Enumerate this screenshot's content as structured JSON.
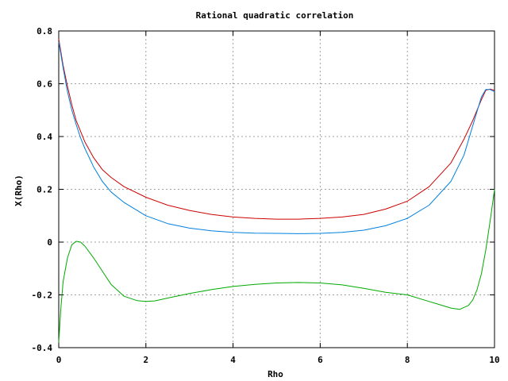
{
  "chart_data": {
    "type": "line",
    "title": "Rational quadratic correlation",
    "xlabel": "Rho",
    "ylabel": "X(Rho)",
    "xlim": [
      0,
      10
    ],
    "ylim": [
      -0.4,
      0.8
    ],
    "xticks": [
      0,
      2,
      4,
      6,
      8,
      10
    ],
    "yticks": [
      -0.4,
      -0.2,
      0,
      0.2,
      0.4,
      0.6,
      0.8
    ],
    "xtick_labels": [
      "0",
      "2",
      "4",
      "6",
      "8",
      "10"
    ],
    "ytick_labels": [
      "-0.4",
      "-0.2",
      "0",
      "0.2",
      "0.4",
      "0.6",
      "0.8"
    ],
    "grid": true,
    "series": [
      {
        "color": "#cc0000",
        "x": [
          0,
          0.1,
          0.2,
          0.3,
          0.4,
          0.5,
          0.6,
          0.8,
          1.0,
          1.2,
          1.5,
          2.0,
          2.5,
          3.0,
          3.5,
          4.0,
          4.5,
          5.0,
          5.5,
          6.0,
          6.5,
          7.0,
          7.5,
          8.0,
          8.5,
          9.0,
          9.3,
          9.5,
          9.7,
          9.8,
          9.9,
          10.0
        ],
        "y": [
          0.77,
          0.67,
          0.59,
          0.52,
          0.46,
          0.42,
          0.38,
          0.32,
          0.275,
          0.245,
          0.21,
          0.17,
          0.14,
          0.12,
          0.105,
          0.095,
          0.09,
          0.087,
          0.087,
          0.09,
          0.095,
          0.105,
          0.125,
          0.155,
          0.21,
          0.3,
          0.39,
          0.46,
          0.54,
          0.575,
          0.58,
          0.575
        ]
      },
      {
        "color": "#0080dd",
        "x": [
          0,
          0.1,
          0.2,
          0.3,
          0.4,
          0.5,
          0.6,
          0.8,
          1.0,
          1.2,
          1.5,
          2.0,
          2.5,
          3.0,
          3.5,
          4.0,
          4.5,
          5.0,
          5.5,
          6.0,
          6.5,
          7.0,
          7.5,
          8.0,
          8.5,
          9.0,
          9.3,
          9.5,
          9.7,
          9.8,
          9.9,
          10.0
        ],
        "y": [
          0.76,
          0.66,
          0.57,
          0.5,
          0.445,
          0.395,
          0.355,
          0.285,
          0.23,
          0.19,
          0.15,
          0.1,
          0.07,
          0.053,
          0.043,
          0.037,
          0.034,
          0.033,
          0.032,
          0.033,
          0.037,
          0.045,
          0.062,
          0.09,
          0.14,
          0.23,
          0.33,
          0.44,
          0.55,
          0.578,
          0.578,
          0.57
        ]
      },
      {
        "color": "#00aa00",
        "x": [
          0,
          0.05,
          0.1,
          0.2,
          0.3,
          0.4,
          0.5,
          0.6,
          0.8,
          1.0,
          1.2,
          1.5,
          1.8,
          2.0,
          2.2,
          2.5,
          3.0,
          3.5,
          4.0,
          4.5,
          5.0,
          5.5,
          6.0,
          6.5,
          7.0,
          7.5,
          8.0,
          8.5,
          9.0,
          9.2,
          9.4,
          9.5,
          9.6,
          9.7,
          9.8,
          9.9,
          10.0
        ],
        "y": [
          -0.38,
          -0.25,
          -0.15,
          -0.06,
          -0.01,
          0.003,
          0.0,
          -0.015,
          -0.06,
          -0.11,
          -0.16,
          -0.205,
          -0.222,
          -0.225,
          -0.223,
          -0.212,
          -0.195,
          -0.18,
          -0.168,
          -0.16,
          -0.155,
          -0.153,
          -0.155,
          -0.162,
          -0.175,
          -0.19,
          -0.2,
          -0.225,
          -0.25,
          -0.255,
          -0.24,
          -0.22,
          -0.18,
          -0.12,
          -0.03,
          0.08,
          0.2
        ]
      }
    ]
  }
}
